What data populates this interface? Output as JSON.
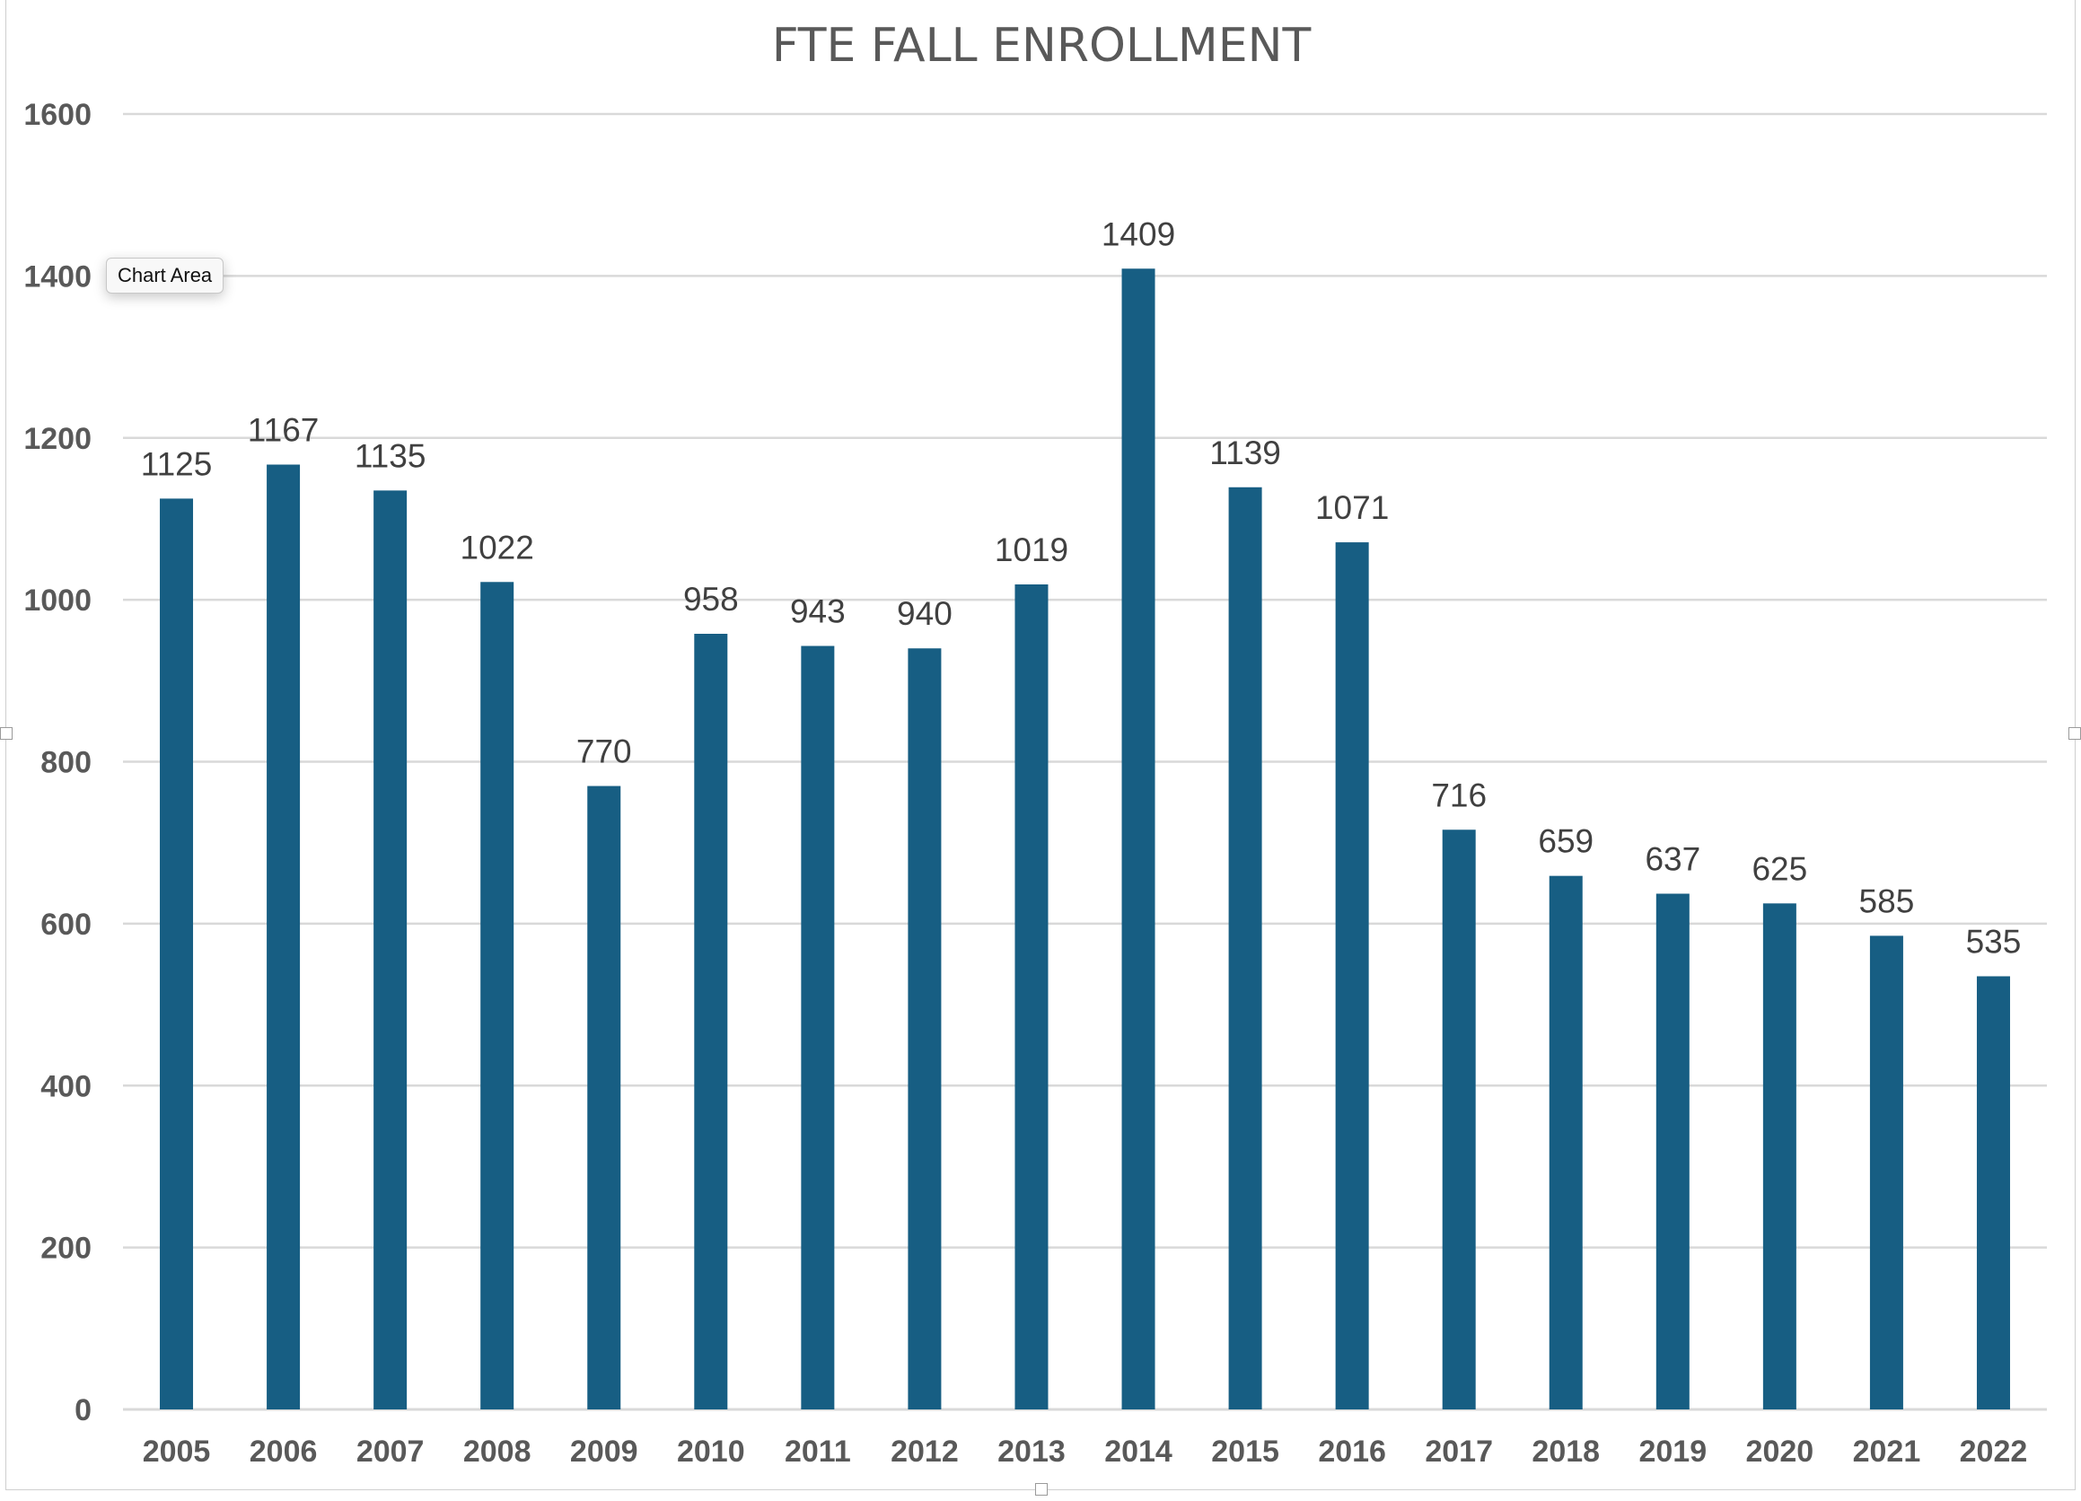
{
  "tooltip": {
    "text": "Chart Area"
  },
  "colors": {
    "bar": "#175E83",
    "gridline": "#D9D9D9",
    "title": "#595959",
    "tick": "#595959",
    "data_label": "#404040"
  },
  "chart_data": {
    "type": "bar",
    "title": "FTE FALL ENROLLMENT",
    "xlabel": "",
    "ylabel": "",
    "ylim": [
      0,
      1600
    ],
    "yticks": [
      0,
      200,
      400,
      600,
      800,
      1000,
      1200,
      1400,
      1600
    ],
    "grid": true,
    "legend": "none",
    "categories": [
      "2005",
      "2006",
      "2007",
      "2008",
      "2009",
      "2010",
      "2011",
      "2012",
      "2013",
      "2014",
      "2015",
      "2016",
      "2017",
      "2018",
      "2019",
      "2020",
      "2021",
      "2022"
    ],
    "series": [
      {
        "values": [
          1125,
          1167,
          1135,
          1022,
          770,
          958,
          943,
          940,
          1019,
          1409,
          1139,
          1071,
          716,
          659,
          637,
          625,
          585,
          535
        ]
      }
    ]
  }
}
